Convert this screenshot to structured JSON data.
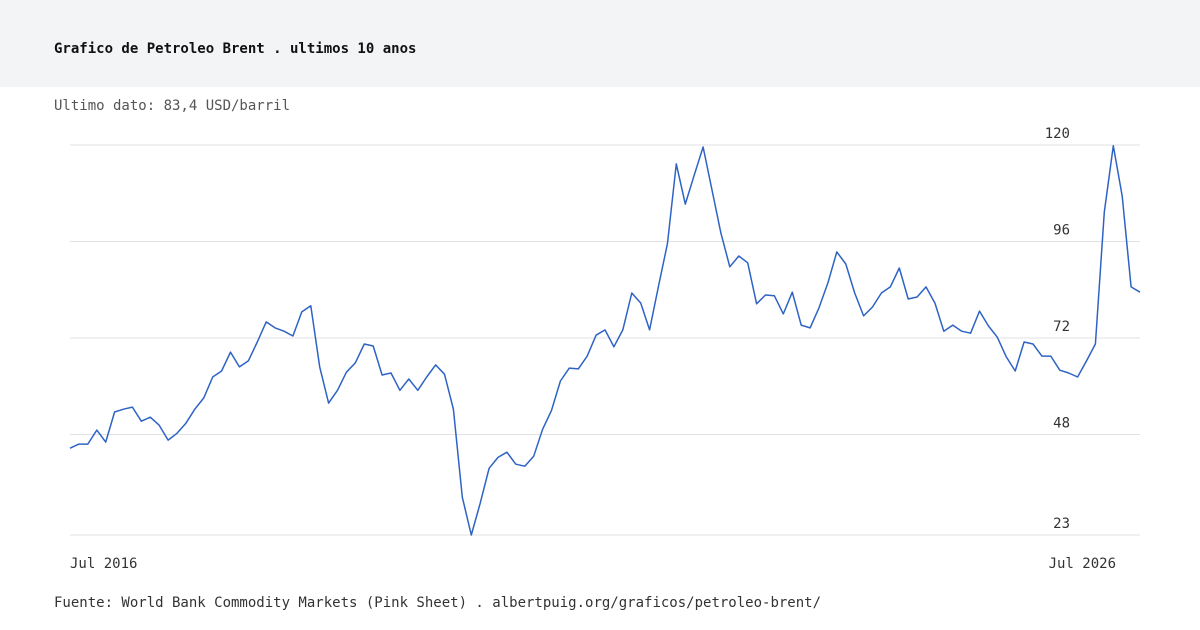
{
  "chart_data": {
    "type": "line",
    "title": "Grafico de Petroleo Brent . ultimos 10 anos",
    "subtitle": "Ultimo dato: 83,4 USD/barril",
    "source": "Fuente: World Bank Commodity Markets (Pink Sheet) . albertpuig.org/graficos/petroleo-brent/",
    "categories": [
      "Jul 2016",
      null,
      null,
      null,
      null,
      null,
      null,
      null,
      null,
      null,
      null,
      null,
      null,
      null,
      null,
      null,
      null,
      null,
      null,
      null,
      null,
      null,
      null,
      null,
      null,
      null,
      null,
      null,
      null,
      null,
      null,
      null,
      null,
      null,
      null,
      null,
      null,
      null,
      null,
      null,
      null,
      null,
      null,
      null,
      null,
      null,
      null,
      null,
      null,
      null,
      null,
      null,
      null,
      null,
      null,
      null,
      null,
      null,
      null,
      null,
      null,
      null,
      null,
      null,
      null,
      null,
      null,
      null,
      null,
      null,
      null,
      null,
      null,
      null,
      null,
      null,
      null,
      null,
      null,
      null,
      null,
      null,
      null,
      null,
      null,
      null,
      null,
      null,
      null,
      null,
      null,
      null,
      null,
      null,
      null,
      null,
      null,
      null,
      null,
      null,
      null,
      null,
      null,
      null,
      null,
      null,
      null,
      null,
      null,
      null,
      null,
      null,
      null,
      null,
      null,
      null,
      null,
      null,
      null,
      null,
      "Jul 2026"
    ],
    "series": [
      {
        "color": "#2e63c4",
        "values": [
          44.6,
          45.6,
          45.6,
          49.1,
          46.1,
          53.6,
          54.3,
          54.8,
          51.3,
          52.3,
          50.3,
          46.6,
          48.3,
          50.8,
          54.3,
          57.1,
          62.3,
          63.8,
          68.5,
          64.8,
          66.3,
          71.0,
          76.0,
          74.5,
          73.7,
          72.5,
          78.5,
          80.0,
          64.8,
          55.8,
          59.0,
          63.5,
          65.8,
          70.5,
          70.0,
          62.8,
          63.3,
          59.0,
          61.8,
          59.0,
          62.3,
          65.3,
          63.0,
          54.3,
          32.4,
          23.0,
          30.9,
          39.6,
          42.3,
          43.6,
          40.6,
          40.1,
          42.6,
          49.3,
          54.0,
          61.3,
          64.5,
          64.3,
          67.5,
          72.7,
          74.0,
          69.8,
          74.0,
          83.2,
          80.7,
          74.0,
          84.9,
          95.4,
          115.3,
          105.3,
          112.5,
          119.5,
          108.8,
          98.1,
          89.7,
          92.4,
          90.7,
          80.5,
          82.7,
          82.5,
          78.0,
          83.4,
          75.2,
          74.5,
          79.5,
          85.7,
          93.4,
          90.4,
          83.2,
          77.5,
          79.7,
          83.2,
          84.7,
          89.4,
          81.7,
          82.2,
          84.7,
          80.7,
          73.7,
          75.2,
          73.7,
          73.2,
          78.7,
          75.0,
          72.2,
          67.3,
          63.8,
          71.0,
          70.5,
          67.5,
          67.5,
          64.0,
          63.3,
          62.3,
          66.3,
          70.5,
          103.3,
          119.8,
          107.3,
          84.7,
          83.4
        ]
      }
    ],
    "ylim": [
      23,
      120
    ],
    "yticks": [
      23,
      48,
      72,
      96,
      120
    ],
    "grid": true
  }
}
